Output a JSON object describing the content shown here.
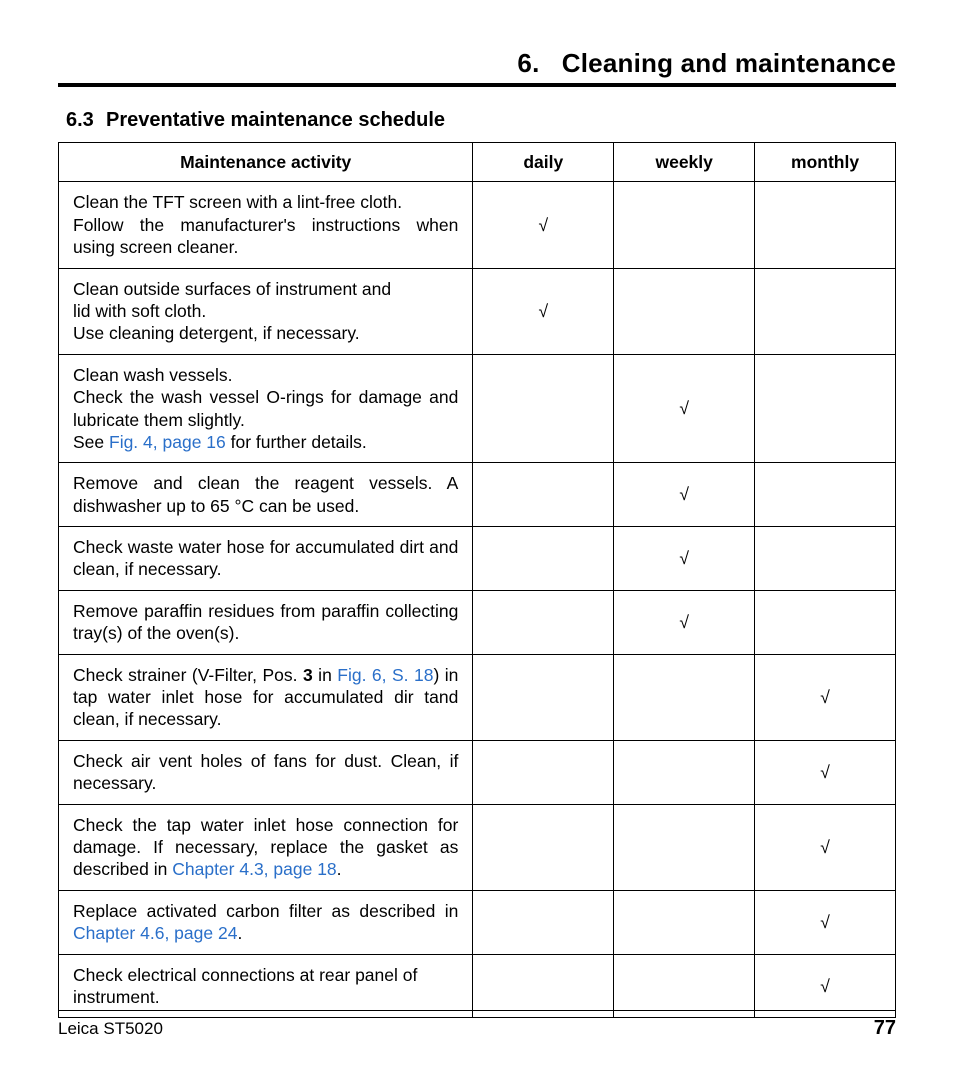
{
  "chapter": {
    "number": "6.",
    "title": "Cleaning and maintenance"
  },
  "section": {
    "number": "6.3",
    "title": "Preventative maintenance schedule"
  },
  "table": {
    "headers": {
      "activity": "Maintenance activity",
      "daily": "daily",
      "weekly": "weekly",
      "monthly": "monthly"
    },
    "checkmark": "√",
    "rows": [
      {
        "html": "Clean the TFT screen with a lint-free cloth.<br>Follow the manufacturer's instructions when using screen cleaner.",
        "daily": true,
        "weekly": false,
        "monthly": false
      },
      {
        "html": "Clean outside surfaces of instrument and<br>lid with soft cloth.<br>Use cleaning detergent, if necessary.",
        "daily": true,
        "weekly": false,
        "monthly": false
      },
      {
        "html": "Clean wash vessels.<br>Check the wash vessel O-rings for damage and lubrica­te them slightly.<br>See <span class=\"ref\">Fig. 4, page 16</span> for further details.",
        "daily": false,
        "weekly": true,
        "monthly": false
      },
      {
        "html": "Remove and clean the reagent vessels. A dishwasher up to 65 °C can be used.",
        "daily": false,
        "weekly": true,
        "monthly": false
      },
      {
        "html": "Check waste water hose for accumulated dirt and cle­an, if necessary.",
        "daily": false,
        "weekly": true,
        "monthly": false
      },
      {
        "html": "Remove paraffin residues from paraffin collecting tray(s) of the oven(s).",
        "daily": false,
        "weekly": true,
        "monthly": false
      },
      {
        "html": "Check strainer (V-Filter, Pos. <b>3</b> in <span class=\"ref\">Fig. 6, S. 18</span>)  in tap wa­ter inlet hose for accumulated dir tand clean, if neces­sary.",
        "daily": false,
        "weekly": false,
        "monthly": true
      },
      {
        "html": "Check air vent holes of fans for dust. Clean, if necessa­ry.",
        "daily": false,
        "weekly": false,
        "monthly": true
      },
      {
        "html": "Check the tap water inlet hose connection for damage. If necessary, replace the gasket as described in <span class=\"ref\">Chap­ter 4.3, page 18</span>.",
        "daily": false,
        "weekly": false,
        "monthly": true
      },
      {
        "html": "Replace activated carbon filter as described in <span class=\"ref\">Chapter 4.6, page 24</span>.",
        "daily": false,
        "weekly": false,
        "monthly": true
      },
      {
        "html": "Check electrical connections at rear panel of<br>instrument.",
        "daily": false,
        "weekly": false,
        "monthly": true
      }
    ]
  },
  "footer": {
    "product": "Leica ST5020",
    "page": "77"
  },
  "style": {
    "link_color": "#2a6fc9",
    "text_color": "#000000",
    "background": "#ffffff"
  }
}
